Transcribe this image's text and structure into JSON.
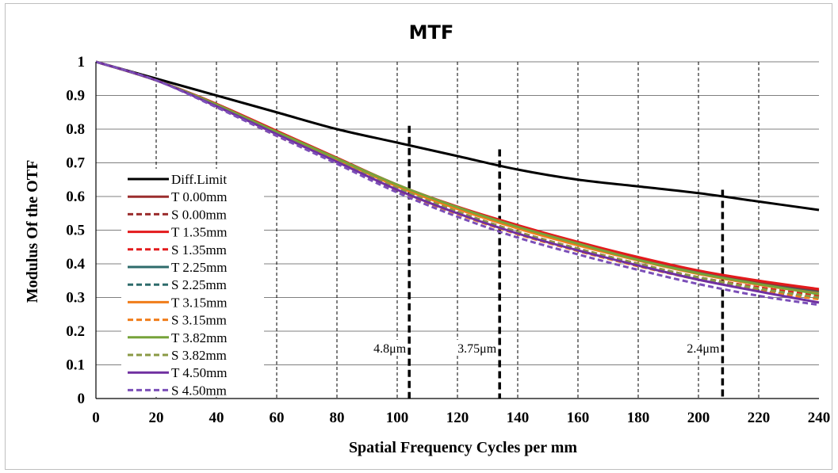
{
  "chart_data": {
    "type": "line",
    "title": "MTF",
    "xlabel": "Spatial Frequency Cycles per mm",
    "ylabel": "Modulus Of the OTF",
    "xlim": [
      0,
      240
    ],
    "ylim": [
      0,
      1
    ],
    "xticks": [
      0,
      20,
      40,
      60,
      80,
      100,
      120,
      140,
      160,
      180,
      200,
      220,
      240
    ],
    "yticks": [
      0,
      0.1,
      0.2,
      0.3,
      0.4,
      0.5,
      0.6,
      0.7,
      0.8,
      0.9,
      1
    ],
    "ytick_labels": [
      "0",
      "0.1",
      "0.2",
      "0.3",
      "0.4",
      "0.5",
      "0.6",
      "0.7",
      "0.8",
      "0.9",
      "1"
    ],
    "grid": {
      "horizontal": "solid",
      "vertical": "dashed"
    },
    "legend_position": "left",
    "x": [
      0,
      20,
      40,
      60,
      80,
      100,
      120,
      140,
      160,
      180,
      200,
      220,
      240
    ],
    "series": [
      {
        "name": "Diff.Limit",
        "color": "#000000",
        "dash": false,
        "values": [
          1,
          0.95,
          0.9,
          0.85,
          0.8,
          0.76,
          0.72,
          0.68,
          0.65,
          0.63,
          0.61,
          0.585,
          0.56
        ]
      },
      {
        "name": "T 0.00mm",
        "color": "#9b2d2d",
        "dash": false,
        "values": [
          1,
          0.945,
          0.875,
          0.79,
          0.71,
          0.635,
          0.565,
          0.51,
          0.46,
          0.415,
          0.375,
          0.345,
          0.32
        ]
      },
      {
        "name": "S 0.00mm",
        "color": "#9b2d2d",
        "dash": true,
        "values": [
          1,
          0.945,
          0.87,
          0.785,
          0.705,
          0.625,
          0.555,
          0.495,
          0.445,
          0.4,
          0.36,
          0.33,
          0.305
        ]
      },
      {
        "name": "T 1.35mm",
        "color": "#e31a1c",
        "dash": false,
        "values": [
          1,
          0.945,
          0.875,
          0.795,
          0.715,
          0.635,
          0.57,
          0.515,
          0.465,
          0.42,
          0.38,
          0.35,
          0.325
        ]
      },
      {
        "name": "S 1.35mm",
        "color": "#e31a1c",
        "dash": true,
        "values": [
          1,
          0.945,
          0.87,
          0.785,
          0.705,
          0.625,
          0.555,
          0.495,
          0.445,
          0.4,
          0.36,
          0.33,
          0.305
        ]
      },
      {
        "name": "T 2.25mm",
        "color": "#2e6b6b",
        "dash": false,
        "values": [
          1,
          0.945,
          0.873,
          0.79,
          0.71,
          0.632,
          0.565,
          0.508,
          0.458,
          0.412,
          0.373,
          0.34,
          0.315
        ]
      },
      {
        "name": "S 2.25mm",
        "color": "#2e6b6b",
        "dash": true,
        "values": [
          1,
          0.945,
          0.868,
          0.782,
          0.702,
          0.62,
          0.55,
          0.49,
          0.44,
          0.395,
          0.355,
          0.322,
          0.297
        ]
      },
      {
        "name": "T 3.15mm",
        "color": "#f07d1a",
        "dash": false,
        "values": [
          1,
          0.945,
          0.873,
          0.79,
          0.71,
          0.63,
          0.563,
          0.505,
          0.455,
          0.41,
          0.37,
          0.338,
          0.312
        ]
      },
      {
        "name": "S 3.15mm",
        "color": "#f07d1a",
        "dash": true,
        "values": [
          1,
          0.945,
          0.867,
          0.78,
          0.7,
          0.618,
          0.548,
          0.488,
          0.438,
          0.393,
          0.353,
          0.32,
          0.295
        ]
      },
      {
        "name": "T 3.82mm",
        "color": "#77a33a",
        "dash": false,
        "values": [
          1,
          0.945,
          0.873,
          0.792,
          0.713,
          0.635,
          0.568,
          0.51,
          0.46,
          0.412,
          0.372,
          0.34,
          0.31
        ]
      },
      {
        "name": "S 3.82mm",
        "color": "#8a9a45",
        "dash": true,
        "values": [
          1,
          0.945,
          0.868,
          0.785,
          0.705,
          0.625,
          0.555,
          0.495,
          0.445,
          0.4,
          0.36,
          0.327,
          0.3
        ]
      },
      {
        "name": "T 4.50mm",
        "color": "#7030a0",
        "dash": false,
        "values": [
          1,
          0.945,
          0.868,
          0.785,
          0.703,
          0.62,
          0.55,
          0.49,
          0.44,
          0.395,
          0.353,
          0.318,
          0.285
        ]
      },
      {
        "name": "S 4.50mm",
        "color": "#7b4fb8",
        "dash": true,
        "values": [
          1,
          0.945,
          0.865,
          0.78,
          0.697,
          0.612,
          0.54,
          0.478,
          0.428,
          0.382,
          0.34,
          0.305,
          0.278
        ]
      }
    ],
    "markers": [
      {
        "x": 104,
        "y_top": 0.81,
        "label": "4.8μm"
      },
      {
        "x": 134,
        "y_top": 0.74,
        "label": "3.75μm"
      },
      {
        "x": 208,
        "y_top": 0.62,
        "label": "2.4μm"
      }
    ]
  }
}
